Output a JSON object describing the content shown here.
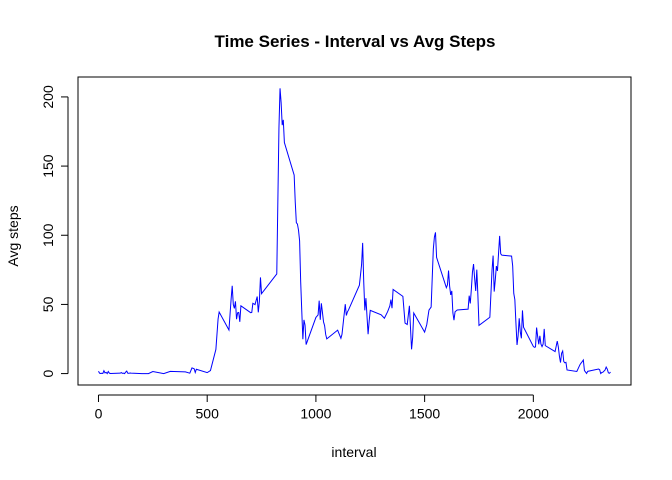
{
  "chart_data": {
    "type": "line",
    "title": "Time Series - Interval vs Avg Steps",
    "x_label": "interval",
    "y_label": "Avg steps",
    "x": [
      0,
      5,
      10,
      15,
      20,
      25,
      30,
      35,
      40,
      45,
      50,
      55,
      100,
      105,
      110,
      115,
      120,
      125,
      130,
      135,
      140,
      145,
      150,
      200,
      230,
      250,
      300,
      330,
      400,
      420,
      430,
      440,
      445,
      450,
      500,
      515,
      540,
      550,
      555,
      600,
      610,
      615,
      620,
      625,
      630,
      635,
      640,
      645,
      650,
      655,
      700,
      705,
      710,
      720,
      730,
      735,
      740,
      745,
      750,
      800,
      820,
      830,
      835,
      840,
      845,
      850,
      855,
      900,
      905,
      910,
      915,
      920,
      925,
      930,
      935,
      940,
      945,
      950,
      955,
      1000,
      1010,
      1015,
      1020,
      1025,
      1030,
      1035,
      1040,
      1045,
      1050,
      1100,
      1115,
      1120,
      1135,
      1140,
      1145,
      1150,
      1200,
      1210,
      1215,
      1220,
      1225,
      1230,
      1240,
      1245,
      1250,
      1300,
      1315,
      1330,
      1340,
      1345,
      1350,
      1355,
      1400,
      1410,
      1420,
      1430,
      1440,
      1445,
      1450,
      1500,
      1510,
      1520,
      1530,
      1540,
      1545,
      1550,
      1555,
      1600,
      1605,
      1610,
      1615,
      1620,
      1625,
      1630,
      1635,
      1640,
      1650,
      1700,
      1705,
      1710,
      1715,
      1720,
      1725,
      1730,
      1735,
      1740,
      1745,
      1750,
      1800,
      1810,
      1815,
      1820,
      1825,
      1830,
      1835,
      1845,
      1850,
      1855,
      1900,
      1905,
      1910,
      1915,
      1920,
      1925,
      1930,
      1935,
      1940,
      1945,
      1950,
      1955,
      2000,
      2005,
      2010,
      2015,
      2020,
      2025,
      2030,
      2035,
      2040,
      2045,
      2050,
      2055,
      2100,
      2110,
      2115,
      2120,
      2125,
      2130,
      2135,
      2140,
      2145,
      2150,
      2155,
      2200,
      2215,
      2220,
      2225,
      2230,
      2235,
      2245,
      2250,
      2300,
      2305,
      2310,
      2315,
      2320,
      2330,
      2335,
      2340,
      2345,
      2350,
      2355
    ],
    "series": [
      {
        "name": "Avg steps",
        "color": "#0000ff",
        "values": [
          1.7,
          0.3,
          0.1,
          0.2,
          0.1,
          2.1,
          0.5,
          0.9,
          0,
          1.5,
          0.3,
          0.1,
          0.3,
          0.7,
          0.2,
          0.3,
          0,
          1.1,
          1.8,
          0.2,
          0.2,
          0.4,
          0.3,
          0,
          0,
          1.5,
          0,
          1.6,
          1.2,
          0.3,
          4.1,
          3.5,
          0.8,
          3.1,
          0.7,
          2.2,
          17.5,
          39.4,
          44.5,
          31.5,
          53.8,
          63.5,
          50,
          47.1,
          52.2,
          39.3,
          44,
          44.2,
          37.4,
          49,
          44,
          44.2,
          50.8,
          49.9,
          55.7,
          44.3,
          52.3,
          69.5,
          57.8,
          68,
          72,
          177.3,
          206.2,
          195.9,
          179.6,
          183.4,
          167,
          143.5,
          124,
          109.1,
          108.1,
          103.7,
          96,
          66.2,
          45.2,
          24.8,
          38.8,
          35,
          21,
          40.6,
          42.4,
          52.7,
          38.9,
          50.8,
          44.3,
          37.4,
          34.7,
          28.3,
          25.1,
          31.4,
          25.5,
          28.4,
          50.2,
          42,
          44.6,
          46,
          63.9,
          78.6,
          94.5,
          66.2,
          45.7,
          54.5,
          28.5,
          38,
          45.7,
          42.5,
          40,
          44.8,
          48.9,
          53.5,
          47.3,
          60.8,
          55.8,
          36.5,
          35.5,
          49,
          17.5,
          26.1,
          43.8,
          30,
          35.5,
          45.9,
          48.1,
          90,
          98.7,
          102.1,
          84,
          62.1,
          64.1,
          74.5,
          63.2,
          56.9,
          59.8,
          43.9,
          38.6,
          44.7,
          46,
          46.6,
          56.3,
          50.7,
          61.2,
          73.4,
          79.2,
          68.9,
          59.7,
          75.1,
          56.5,
          34.8,
          40.7,
          74.7,
          85.3,
          59.3,
          67.8,
          77.7,
          74.2,
          99.5,
          86.6,
          85.6,
          84.9,
          77.8,
          58,
          53.4,
          36.3,
          20.7,
          27.4,
          40,
          30.2,
          25.5,
          45.7,
          33.5,
          19.6,
          19,
          19.3,
          33.3,
          26.8,
          21.2,
          27.3,
          21.3,
          19.5,
          21.3,
          32.3,
          20.2,
          15.9,
          23.5,
          19.2,
          12.5,
          8,
          14.7,
          16.3,
          8.7,
          7.8,
          8.1,
          2.6,
          1.5,
          6.6,
          7.7,
          8.7,
          9.8,
          2.2,
          0.1,
          1.6,
          3.3,
          2.8,
          0,
          0.8,
          1,
          2.6,
          4.7,
          3.3,
          0.6,
          0.2,
          1.1
        ]
      }
    ],
    "xlim": [
      -94.2,
      2449.2
    ],
    "xticks": [
      0,
      500,
      1000,
      1500,
      2000
    ],
    "ylim": [
      -8.25,
      214.4
    ],
    "yticks": [
      0,
      50,
      100,
      150,
      200
    ]
  }
}
